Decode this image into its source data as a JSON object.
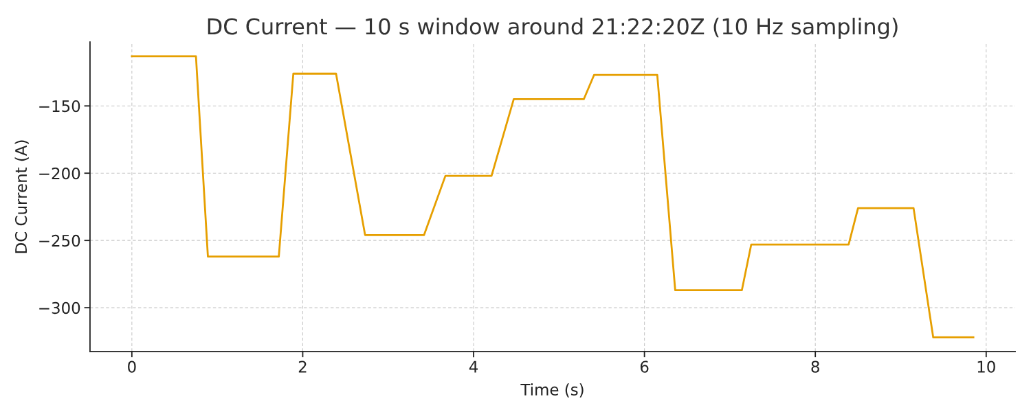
{
  "chart_data": {
    "type": "line",
    "title": "DC Current — 10 s window around 21:22:20Z (10 Hz sampling)",
    "xlabel": "Time (s)",
    "ylabel": "DC Current (A)",
    "x": [
      0,
      0.75,
      0.89,
      1.72,
      1.89,
      2.39,
      2.73,
      3.42,
      3.67,
      4.21,
      4.47,
      5.29,
      5.41,
      6.15,
      6.36,
      7.14,
      7.25,
      8.39,
      8.5,
      9.15,
      9.38,
      9.85
    ],
    "series": [
      {
        "color": "#e69f00",
        "values": [
          -113,
          -113,
          -262,
          -262,
          -126,
          -126,
          -246,
          -246,
          -202,
          -202,
          -145,
          -145,
          -127,
          -127,
          -287,
          -287,
          -253,
          -253,
          -226,
          -226,
          -322,
          -322
        ]
      }
    ],
    "xlim": [
      -0.49,
      10.34
    ],
    "ylim": [
      -332.5,
      -102.5
    ],
    "xticks": [
      0,
      2,
      4,
      6,
      8,
      10
    ],
    "yticks": [
      {
        "value": -150,
        "label": "−150"
      },
      {
        "value": -200,
        "label": "−200"
      },
      {
        "value": -250,
        "label": "−250"
      },
      {
        "value": -300,
        "label": "−300"
      }
    ],
    "grid": true,
    "marker": "none",
    "line_style": "solid"
  }
}
